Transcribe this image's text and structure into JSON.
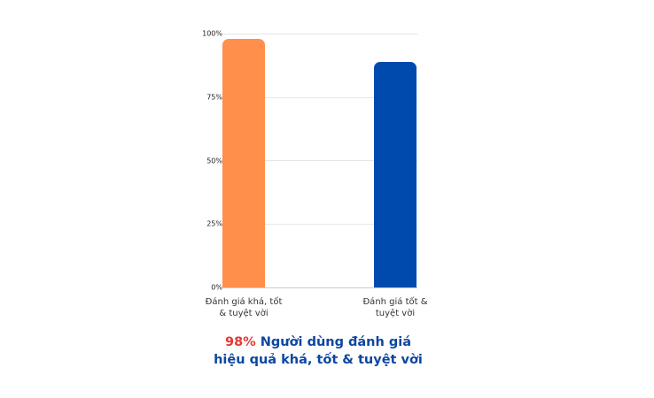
{
  "chart_data": {
    "type": "bar",
    "categories": [
      "Đánh giá khá, tốt & tuyệt vời",
      "Đánh giá tốt & tuyệt vời"
    ],
    "values": [
      98,
      89
    ],
    "colors": [
      "#ff8f4b",
      "#004aad"
    ],
    "title": "",
    "xlabel": "",
    "ylabel": "",
    "ylim": [
      0,
      100
    ],
    "yticks": [
      "0%",
      "25%",
      "50%",
      "75%",
      "100%"
    ],
    "grid": true,
    "legend": null
  },
  "labels": {
    "bar1_line1": "Đánh giá khá, tốt",
    "bar1_line2": "& tuyệt vời",
    "bar2_line1": "Đánh giá tốt &",
    "bar2_line2": "tuyệt vời"
  },
  "caption": {
    "highlight": "98%",
    "text": " Người dùng đánh giá hiệu quả khá, tốt & tuyệt vời",
    "highlight_color": "#e53935",
    "text_color": "#0d47a1"
  }
}
